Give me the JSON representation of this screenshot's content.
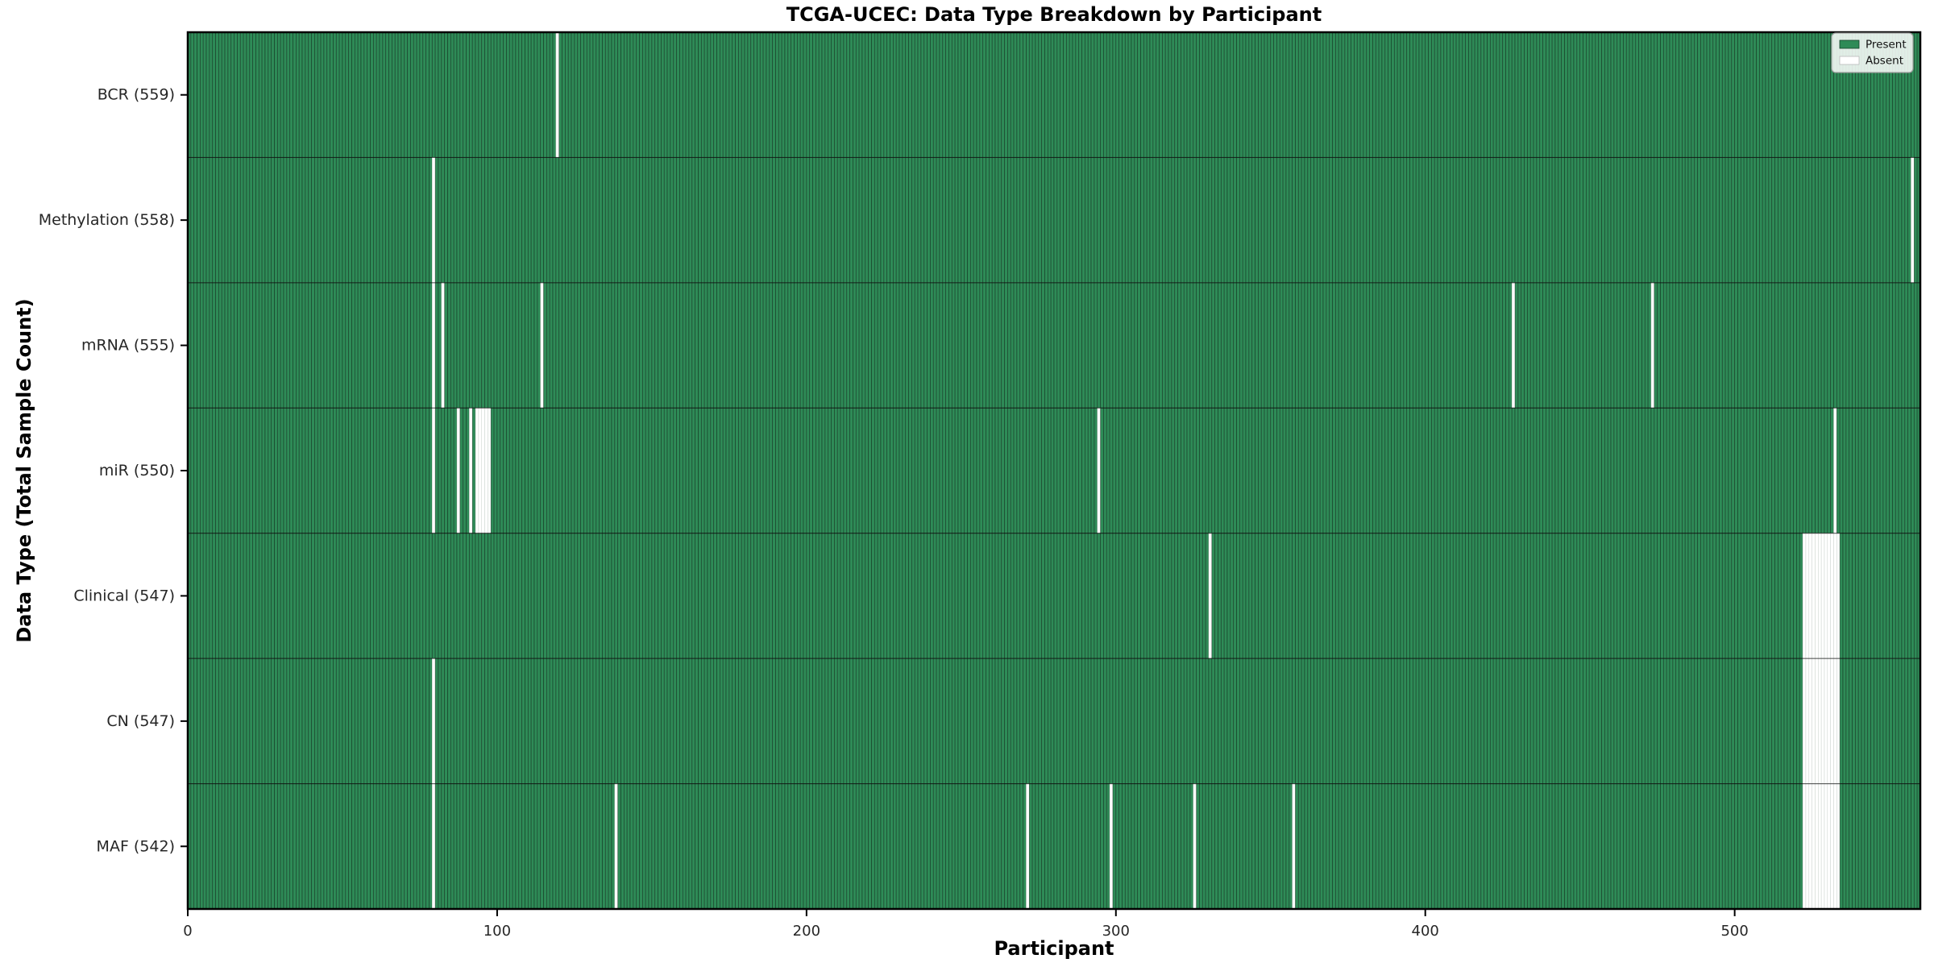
{
  "chart_data": {
    "type": "heatmap",
    "title": "TCGA-UCEC: Data Type Breakdown by Participant",
    "xlabel": "Participant",
    "ylabel": "Data Type (Total Sample Count)",
    "x_ticks": [
      0,
      100,
      200,
      300,
      400,
      500
    ],
    "x_range": [
      0,
      560
    ],
    "n_participants": 560,
    "grid": false,
    "legend": {
      "position": "upper right",
      "items": [
        {
          "label": "Present",
          "color": "#2e8b57"
        },
        {
          "label": "Absent",
          "color": "#ffffff"
        }
      ]
    },
    "colors": {
      "present": "#2e8b57",
      "absent": "#ffffff",
      "cell_edge": "#000000",
      "absent_edge": "#c4cdc6",
      "spine": "#000000",
      "tick_label": "#262626",
      "legend_border": "#9a9a9a"
    },
    "rows": [
      {
        "data_type": "BCR",
        "label": "BCR (559)",
        "present_count": 559,
        "absent_participants": [
          119
        ]
      },
      {
        "data_type": "Methylation",
        "label": "Methylation (558)",
        "present_count": 558,
        "absent_participants": [
          79,
          557
        ]
      },
      {
        "data_type": "mRNA",
        "label": "mRNA (555)",
        "present_count": 555,
        "absent_participants": [
          79,
          82,
          114,
          428,
          473
        ]
      },
      {
        "data_type": "miR",
        "label": "miR (550)",
        "present_count": 550,
        "absent_participants": [
          79,
          87,
          91,
          93,
          94,
          95,
          96,
          97,
          294,
          532
        ]
      },
      {
        "data_type": "Clinical",
        "label": "Clinical (547)",
        "present_count": 547,
        "absent_participants": [
          330,
          522,
          523,
          524,
          525,
          526,
          527,
          528,
          529,
          530,
          531,
          532,
          533
        ]
      },
      {
        "data_type": "CN",
        "label": "CN (547)",
        "present_count": 547,
        "absent_participants": [
          79,
          522,
          523,
          524,
          525,
          526,
          527,
          528,
          529,
          530,
          531,
          532,
          533
        ]
      },
      {
        "data_type": "MAF",
        "label": "MAF (542)",
        "present_count": 542,
        "absent_participants": [
          79,
          138,
          271,
          298,
          325,
          357,
          522,
          523,
          524,
          525,
          526,
          527,
          528,
          529,
          530,
          531,
          532,
          533
        ]
      }
    ]
  }
}
